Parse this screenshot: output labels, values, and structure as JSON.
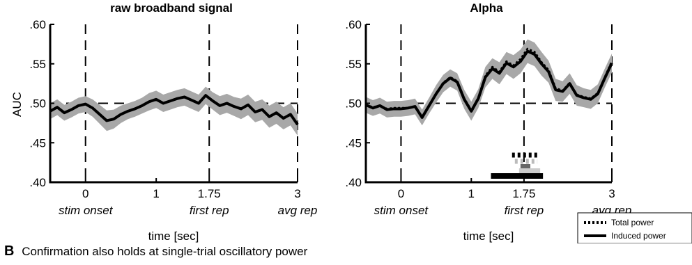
{
  "panel_b_text": {
    "letter": "B",
    "caption": "Confirmation also holds at single-trial oscillatory power"
  },
  "legend": {
    "total_label": "Total power",
    "induced_label": "Induced power"
  },
  "chart_data": [
    {
      "type": "line",
      "title": "raw broadband signal",
      "xlabel": "time [sec]",
      "ylabel": "AUC",
      "xlim": [
        -0.5,
        3
      ],
      "ylim": [
        0.4,
        0.6
      ],
      "yticks": [
        0.4,
        0.45,
        0.5,
        0.55,
        0.6
      ],
      "ytick_labels": [
        ".40",
        ".45",
        ".50",
        ".55",
        ".60"
      ],
      "xticks": [
        0,
        1,
        1.75,
        3
      ],
      "xtick_labels": [
        "0",
        "1",
        "1.75",
        "3"
      ],
      "event_labels": [
        {
          "x": 0,
          "label": "stim onset"
        },
        {
          "x": 1.75,
          "label": "first rep"
        },
        {
          "x": 3,
          "label": "avg rep"
        }
      ],
      "chance_level": 0.5,
      "grid": false,
      "series": [
        {
          "x": [
            -0.5,
            -0.4,
            -0.3,
            -0.2,
            -0.1,
            0,
            0.1,
            0.2,
            0.3,
            0.4,
            0.5,
            0.6,
            0.7,
            0.8,
            0.9,
            1.0,
            1.1,
            1.2,
            1.3,
            1.4,
            1.5,
            1.6,
            1.7,
            1.8,
            1.9,
            2.0,
            2.1,
            2.2,
            2.3,
            2.4,
            2.5,
            2.6,
            2.7,
            2.8,
            2.9,
            3.0
          ],
          "y": [
            0.49,
            0.495,
            0.488,
            0.492,
            0.497,
            0.499,
            0.494,
            0.486,
            0.478,
            0.48,
            0.486,
            0.49,
            0.493,
            0.497,
            0.502,
            0.505,
            0.5,
            0.503,
            0.506,
            0.508,
            0.504,
            0.5,
            0.51,
            0.503,
            0.497,
            0.5,
            0.496,
            0.493,
            0.498,
            0.489,
            0.492,
            0.483,
            0.488,
            0.481,
            0.486,
            0.473
          ],
          "err": [
            0.01,
            0.01,
            0.01,
            0.01,
            0.01,
            0.01,
            0.011,
            0.012,
            0.013,
            0.012,
            0.011,
            0.01,
            0.01,
            0.01,
            0.011,
            0.011,
            0.011,
            0.011,
            0.011,
            0.011,
            0.011,
            0.011,
            0.011,
            0.011,
            0.012,
            0.012,
            0.012,
            0.013,
            0.013,
            0.013,
            0.013,
            0.014,
            0.014,
            0.014,
            0.014,
            0.014
          ]
        }
      ]
    },
    {
      "type": "line",
      "title": "Alpha",
      "xlabel": "time [sec]",
      "ylabel": "",
      "xlim": [
        -0.5,
        3
      ],
      "ylim": [
        0.4,
        0.6
      ],
      "yticks": [
        0.4,
        0.45,
        0.5,
        0.55,
        0.6
      ],
      "ytick_labels": [
        ".40",
        ".45",
        ".50",
        ".55",
        ".60"
      ],
      "xticks": [
        0,
        1,
        1.75,
        3
      ],
      "xtick_labels": [
        "0",
        "1",
        "1.75",
        "3"
      ],
      "event_labels": [
        {
          "x": 0,
          "label": "stim onset"
        },
        {
          "x": 1.75,
          "label": "first rep"
        },
        {
          "x": 3,
          "label": "avg rep"
        }
      ],
      "chance_level": 0.5,
      "grid": false,
      "series": [
        {
          "style": "solid",
          "x": [
            -0.5,
            -0.4,
            -0.3,
            -0.2,
            -0.1,
            0,
            0.1,
            0.2,
            0.3,
            0.4,
            0.5,
            0.6,
            0.7,
            0.8,
            0.9,
            1.0,
            1.1,
            1.2,
            1.3,
            1.4,
            1.5,
            1.6,
            1.7,
            1.8,
            1.9,
            2.0,
            2.1,
            2.2,
            2.3,
            2.4,
            2.5,
            2.6,
            2.7,
            2.8,
            2.9,
            3.0
          ],
          "y": [
            0.498,
            0.494,
            0.497,
            0.492,
            0.493,
            0.493,
            0.494,
            0.496,
            0.482,
            0.497,
            0.512,
            0.525,
            0.532,
            0.527,
            0.505,
            0.49,
            0.506,
            0.533,
            0.544,
            0.538,
            0.551,
            0.546,
            0.553,
            0.566,
            0.562,
            0.55,
            0.54,
            0.517,
            0.515,
            0.525,
            0.51,
            0.507,
            0.505,
            0.512,
            0.532,
            0.551
          ],
          "err": [
            0.01,
            0.01,
            0.01,
            0.01,
            0.01,
            0.01,
            0.01,
            0.01,
            0.01,
            0.01,
            0.011,
            0.011,
            0.011,
            0.011,
            0.012,
            0.012,
            0.012,
            0.013,
            0.013,
            0.014,
            0.014,
            0.015,
            0.015,
            0.015,
            0.015,
            0.015,
            0.014,
            0.014,
            0.013,
            0.013,
            0.013,
            0.012,
            0.012,
            0.012,
            0.012,
            0.012
          ]
        },
        {
          "style": "dotted",
          "x": [
            -0.5,
            -0.4,
            -0.3,
            -0.2,
            -0.1,
            0,
            0.1,
            0.2,
            0.3,
            0.4,
            0.5,
            0.6,
            0.7,
            0.8,
            0.9,
            1.0,
            1.1,
            1.2,
            1.3,
            1.4,
            1.5,
            1.6,
            1.7,
            1.8,
            1.9,
            2.0,
            2.1,
            2.2,
            2.3,
            2.4,
            2.5,
            2.6,
            2.7,
            2.8,
            2.9,
            3.0
          ],
          "y": [
            0.498,
            0.495,
            0.497,
            0.493,
            0.494,
            0.494,
            0.494,
            0.496,
            0.483,
            0.497,
            0.512,
            0.526,
            0.533,
            0.528,
            0.506,
            0.491,
            0.507,
            0.535,
            0.546,
            0.54,
            0.553,
            0.548,
            0.556,
            0.569,
            0.565,
            0.552,
            0.542,
            0.519,
            0.516,
            0.526,
            0.511,
            0.508,
            0.506,
            0.513,
            0.533,
            0.553
          ]
        }
      ],
      "significance_bars": [
        {
          "row": "total-top",
          "color": "#000000",
          "style": "dotted",
          "x_start": 1.58,
          "x_end": 1.96
        },
        {
          "row": "total-bottom",
          "color": "#bbbbbb",
          "style": "dotted",
          "x_start": 1.62,
          "x_end": 1.94
        },
        {
          "row": "induced-top",
          "color": "#666666",
          "style": "solid",
          "x_start": 1.7,
          "x_end": 1.84
        },
        {
          "row": "induced-mid",
          "color": "#cccccc",
          "style": "solid",
          "x_start": 1.68,
          "x_end": 1.98
        },
        {
          "row": "induced-bottom",
          "color": "#000000",
          "style": "solid",
          "x_start": 1.28,
          "x_end": 2.02
        }
      ]
    }
  ]
}
